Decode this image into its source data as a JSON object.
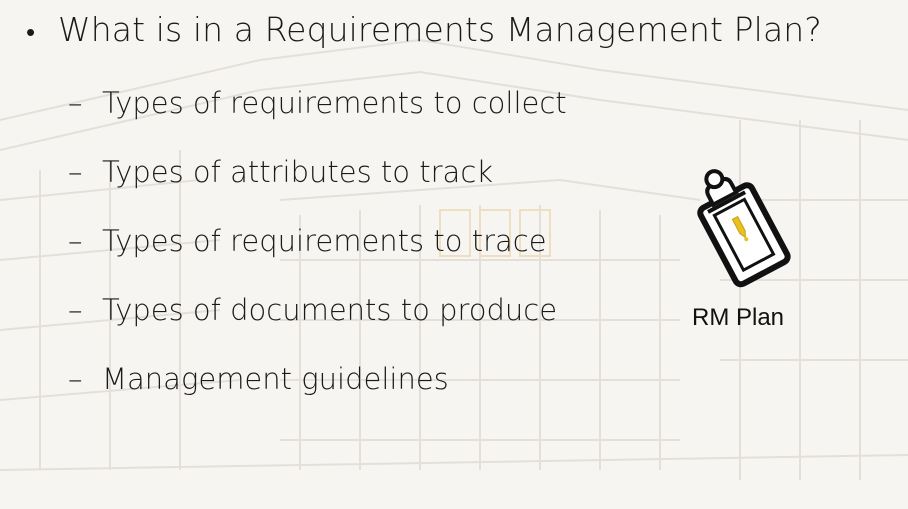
{
  "slide": {
    "heading_bullet": "•",
    "heading": "What is in a Requirements Management Plan?",
    "sub_dash": "–",
    "items": [
      {
        "label": "Types of requirements to collect"
      },
      {
        "label": "Types of attributes to track"
      },
      {
        "label": "Types of requirements to trace"
      },
      {
        "label": "Types of documents to produce"
      },
      {
        "label": "Management guidelines"
      }
    ],
    "figure": {
      "icon": "clipboard-icon",
      "caption": "RM Plan"
    }
  },
  "colors": {
    "background": "#f7f5f2",
    "sketch": "#e2ddd6",
    "text": "#1a1a1a",
    "accent": "#e8c020"
  }
}
